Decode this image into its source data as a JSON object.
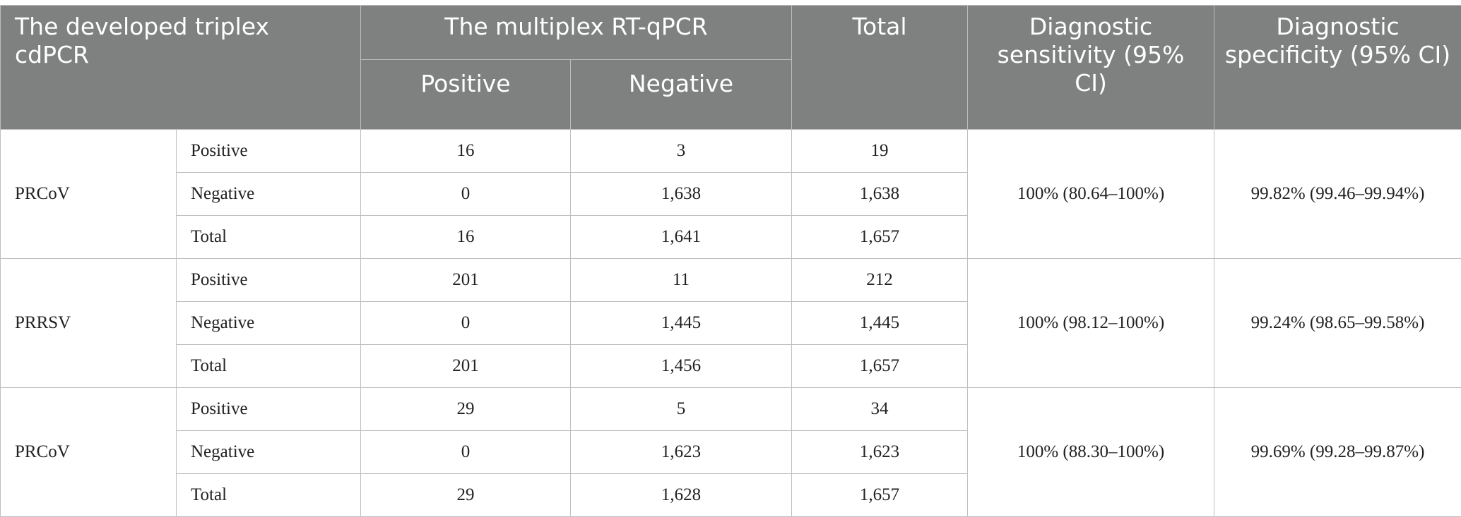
{
  "header": {
    "col1": "The developed triplex cdPCR",
    "col2": "The multiplex RT-qPCR",
    "col2_sub_positive": "Positive",
    "col2_sub_negative": "Negative",
    "col3": "Total",
    "col4": "Diagnostic sensitivity (95% CI)",
    "col5": "Diagnostic specificity (95% CI)"
  },
  "groups": [
    {
      "virus": "PRCoV",
      "sensitivity": "100% (80.64–100%)",
      "specificity": "99.82% (99.46–99.94%)",
      "rows": [
        {
          "label": "Positive",
          "pos": "16",
          "neg": "3",
          "total": "19"
        },
        {
          "label": "Negative",
          "pos": "0",
          "neg": "1,638",
          "total": "1,638"
        },
        {
          "label": "Total",
          "pos": "16",
          "neg": "1,641",
          "total": "1,657"
        }
      ]
    },
    {
      "virus": "PRRSV",
      "sensitivity": "100% (98.12–100%)",
      "specificity": "99.24% (98.65–99.58%)",
      "rows": [
        {
          "label": "Positive",
          "pos": "201",
          "neg": "11",
          "total": "212"
        },
        {
          "label": "Negative",
          "pos": "0",
          "neg": "1,445",
          "total": "1,445"
        },
        {
          "label": "Total",
          "pos": "201",
          "neg": "1,456",
          "total": "1,657"
        }
      ]
    },
    {
      "virus": "PRCoV",
      "sensitivity": "100% (88.30–100%)",
      "specificity": "99.69% (99.28–99.87%)",
      "rows": [
        {
          "label": "Positive",
          "pos": "29",
          "neg": "5",
          "total": "34"
        },
        {
          "label": "Negative",
          "pos": "0",
          "neg": "1,623",
          "total": "1,623"
        },
        {
          "label": "Total",
          "pos": "29",
          "neg": "1,628",
          "total": "1,657"
        }
      ]
    }
  ]
}
